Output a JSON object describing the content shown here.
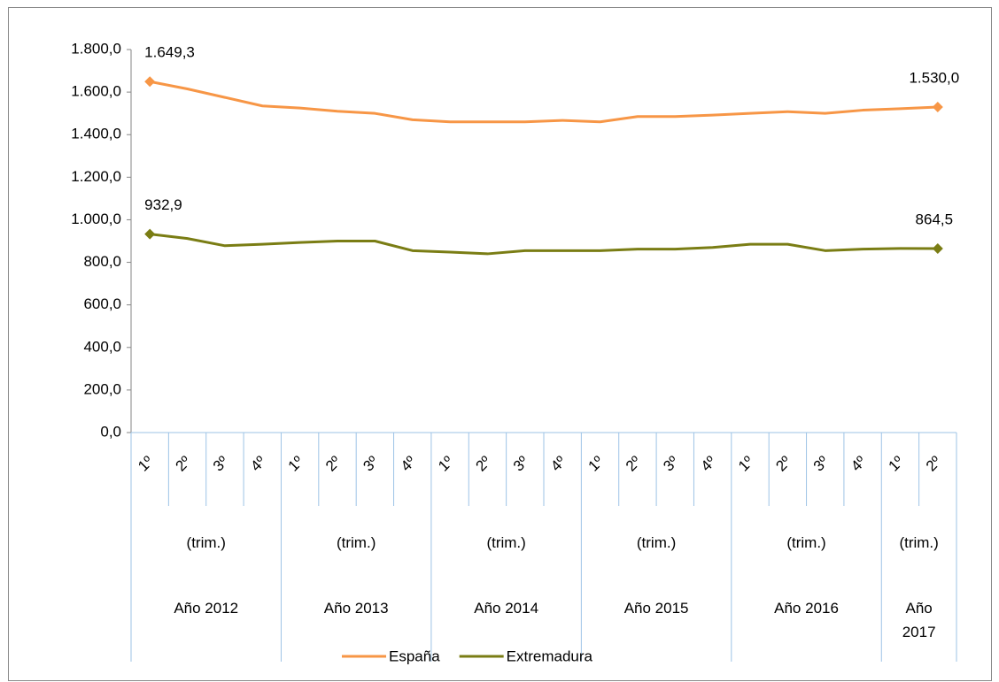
{
  "chart_data": {
    "type": "line",
    "groups": [
      {
        "name": "Año 2012",
        "sub": "(trim.)",
        "categories": [
          "1º",
          "2º",
          "3º",
          "4º"
        ]
      },
      {
        "name": "Año 2013",
        "sub": "(trim.)",
        "categories": [
          "1º",
          "2º",
          "3º",
          "4º"
        ]
      },
      {
        "name": "Año 2014",
        "sub": "(trim.)",
        "categories": [
          "1º",
          "2º",
          "3º",
          "4º"
        ]
      },
      {
        "name": "Año 2015",
        "sub": "(trim.)",
        "categories": [
          "1º",
          "2º",
          "3º",
          "4º"
        ]
      },
      {
        "name": "Año 2016",
        "sub": "(trim.)",
        "categories": [
          "1º",
          "2º",
          "3º",
          "4º"
        ]
      },
      {
        "name": "Año 2017",
        "sub": "(trim.)",
        "categories": [
          "1º",
          "2º"
        ]
      }
    ],
    "series": [
      {
        "name": "España",
        "color": "#f79646",
        "values": [
          1649.3,
          1615,
          1575,
          1535,
          1525,
          1510,
          1500,
          1470,
          1460,
          1460,
          1460,
          1467,
          1460,
          1485,
          1485,
          1492,
          1500,
          1508,
          1500,
          1515,
          1522,
          1530.0
        ],
        "value_labels": [
          "1.649,3",
          null,
          null,
          null,
          null,
          null,
          null,
          null,
          null,
          null,
          null,
          null,
          null,
          null,
          null,
          null,
          null,
          null,
          null,
          null,
          null,
          "1.530,0"
        ]
      },
      {
        "name": "Extremadura",
        "color": "#7a7d14",
        "values": [
          932.9,
          912,
          878,
          885,
          893,
          900,
          900,
          855,
          848,
          840,
          855,
          855,
          855,
          862,
          862,
          870,
          885,
          885,
          855,
          862,
          865,
          864.5
        ],
        "value_labels": [
          "932,9",
          null,
          null,
          null,
          null,
          null,
          null,
          null,
          null,
          null,
          null,
          null,
          null,
          null,
          null,
          null,
          null,
          null,
          null,
          null,
          null,
          "864,5"
        ]
      }
    ],
    "ylim": [
      0,
      1800
    ],
    "yticks": [
      {
        "value": 0,
        "label": "0,0"
      },
      {
        "value": 200,
        "label": "200,0"
      },
      {
        "value": 400,
        "label": "400,0"
      },
      {
        "value": 600,
        "label": "600,0"
      },
      {
        "value": 800,
        "label": "800,0"
      },
      {
        "value": 1000,
        "label": "1.000,0"
      },
      {
        "value": 1200,
        "label": "1.200,0"
      },
      {
        "value": 1400,
        "label": "1.400,0"
      },
      {
        "value": 1600,
        "label": "1.600,0"
      },
      {
        "value": 1800,
        "label": "1.800,0"
      }
    ],
    "grid": false,
    "legend": "bottom"
  }
}
